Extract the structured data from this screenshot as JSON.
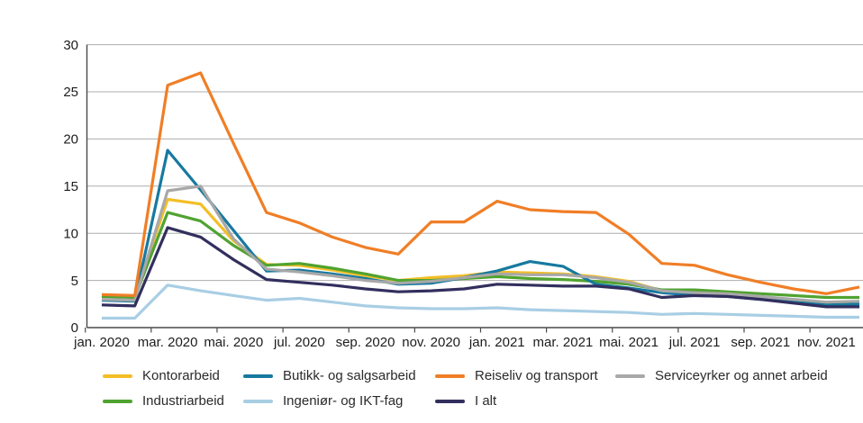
{
  "chart_data": {
    "type": "line",
    "title": "",
    "y_axis": {
      "ticks": [
        0,
        5,
        10,
        15,
        20,
        25,
        30
      ],
      "min": 0,
      "max": 30,
      "grid": true
    },
    "x_axis": {
      "n_points": 24,
      "label_every": 2,
      "tick_labels": [
        "jan. 2020",
        "mar. 2020",
        "mai. 2020",
        "jul. 2020",
        "sep. 2020",
        "nov. 2020",
        "jan. 2021",
        "mar. 2021",
        "mai. 2021",
        "jul. 2021",
        "sep. 2021",
        "nov. 2021"
      ]
    },
    "series": [
      {
        "name": "Kontorarbeid",
        "color": "#F3BE26",
        "values": [
          3.4,
          3.3,
          13.6,
          13.1,
          9.2,
          6.7,
          6.6,
          6.1,
          5.5,
          5.0,
          5.3,
          5.5,
          5.9,
          5.8,
          5.7,
          5.4,
          4.9,
          3.9,
          3.7,
          3.5,
          3.2,
          2.9,
          2.6,
          2.6
        ]
      },
      {
        "name": "Butikk- og salgsarbeid",
        "color": "#17799F",
        "values": [
          2.9,
          2.8,
          18.8,
          14.6,
          10.3,
          6.0,
          6.1,
          5.7,
          5.2,
          4.6,
          4.7,
          5.3,
          6.0,
          7.0,
          6.5,
          4.6,
          4.2,
          3.7,
          3.4,
          3.3,
          3.0,
          2.7,
          2.4,
          2.5
        ]
      },
      {
        "name": "Reiseliv og transport",
        "color": "#F07E26",
        "values": [
          3.5,
          3.4,
          25.7,
          27.0,
          19.5,
          12.2,
          11.1,
          9.6,
          8.5,
          7.8,
          11.2,
          11.2,
          13.4,
          12.5,
          12.3,
          12.2,
          9.9,
          6.8,
          6.6,
          5.6,
          4.8,
          4.1,
          3.6,
          4.3
        ]
      },
      {
        "name": "Serviceyrker og annet arbeid",
        "color": "#A8A8A8",
        "values": [
          3.0,
          2.9,
          14.5,
          15.0,
          9.4,
          6.2,
          5.9,
          5.5,
          5.0,
          4.7,
          4.9,
          5.3,
          5.7,
          5.6,
          5.6,
          5.3,
          4.8,
          3.9,
          3.7,
          3.6,
          3.3,
          3.0,
          2.7,
          2.8
        ]
      },
      {
        "name": "Industriarbeid",
        "color": "#50A330",
        "values": [
          3.3,
          3.2,
          12.2,
          11.3,
          8.7,
          6.6,
          6.8,
          6.3,
          5.7,
          5.0,
          5.0,
          5.2,
          5.4,
          5.2,
          5.1,
          4.9,
          4.6,
          4.0,
          4.0,
          3.8,
          3.6,
          3.4,
          3.2,
          3.2
        ]
      },
      {
        "name": "Ingeniør- og IKT-fag",
        "color": "#A8CEE4",
        "values": [
          1.0,
          1.0,
          4.5,
          3.9,
          3.4,
          2.9,
          3.1,
          2.7,
          2.3,
          2.1,
          2.0,
          2.0,
          2.1,
          1.9,
          1.8,
          1.7,
          1.6,
          1.4,
          1.5,
          1.4,
          1.3,
          1.2,
          1.1,
          1.1
        ]
      },
      {
        "name": "I alt",
        "color": "#322F5E",
        "values": [
          2.4,
          2.3,
          10.6,
          9.6,
          7.2,
          5.1,
          4.8,
          4.5,
          4.1,
          3.8,
          3.9,
          4.1,
          4.6,
          4.5,
          4.4,
          4.4,
          4.1,
          3.2,
          3.4,
          3.3,
          3.0,
          2.6,
          2.2,
          2.2
        ]
      }
    ],
    "draw_order": [
      "Ingeniør- og IKT-fag",
      "Kontorarbeid",
      "Industriarbeid",
      "Butikk- og salgsarbeid",
      "Serviceyrker og annet arbeid",
      "Reiseliv og transport",
      "I alt"
    ],
    "legend_position": "bottom",
    "colors": {
      "grid": "#ADADAD",
      "axis": "#4A4A4C",
      "tick_label": "#1c1c1c"
    }
  }
}
